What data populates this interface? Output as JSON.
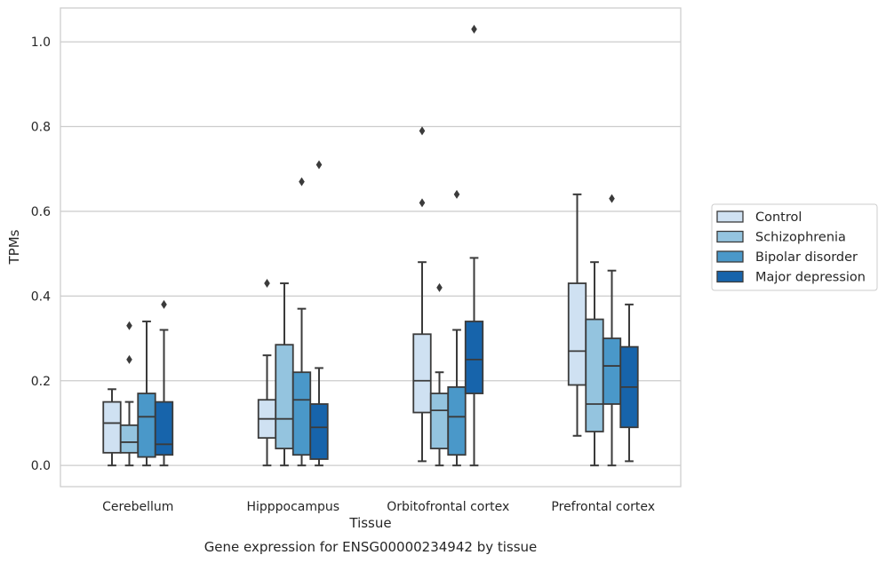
{
  "chart_data": {
    "type": "box",
    "xlabel": "Tissue",
    "ylabel": "TPMs",
    "caption": "Gene expression for ENSG00000234942 by tissue",
    "ylim": [
      -0.05,
      1.08
    ],
    "yticks": [
      "0.0",
      "0.2",
      "0.4",
      "0.6",
      "0.8",
      "1.0"
    ],
    "ytick_values": [
      0,
      0.2,
      0.4,
      0.6,
      0.8,
      1.0
    ],
    "categories": [
      "Cerebellum",
      "Hipppocampus",
      "Orbitofrontal cortex",
      "Prefrontal cortex"
    ],
    "grid": "horizontal",
    "legend_position": "right",
    "series": [
      {
        "name": "Control",
        "color": "#cfe1f2",
        "boxes": [
          {
            "q1": 0.03,
            "median": 0.1,
            "q3": 0.15,
            "whislo": 0.0,
            "whishi": 0.18,
            "fliers": []
          },
          {
            "q1": 0.065,
            "median": 0.11,
            "q3": 0.155,
            "whislo": 0.0,
            "whishi": 0.26,
            "fliers": [
              0.43
            ]
          },
          {
            "q1": 0.125,
            "median": 0.2,
            "q3": 0.31,
            "whislo": 0.01,
            "whishi": 0.48,
            "fliers": [
              0.62,
              0.79
            ]
          },
          {
            "q1": 0.19,
            "median": 0.27,
            "q3": 0.43,
            "whislo": 0.07,
            "whishi": 0.64,
            "fliers": []
          }
        ]
      },
      {
        "name": "Schizophrenia",
        "color": "#94c4df",
        "boxes": [
          {
            "q1": 0.03,
            "median": 0.055,
            "q3": 0.095,
            "whislo": 0.0,
            "whishi": 0.15,
            "fliers": [
              0.25,
              0.33
            ]
          },
          {
            "q1": 0.04,
            "median": 0.11,
            "q3": 0.285,
            "whislo": 0.0,
            "whishi": 0.43,
            "fliers": []
          },
          {
            "q1": 0.04,
            "median": 0.13,
            "q3": 0.17,
            "whislo": 0.0,
            "whishi": 0.22,
            "fliers": [
              0.42
            ]
          },
          {
            "q1": 0.08,
            "median": 0.145,
            "q3": 0.345,
            "whislo": 0.0,
            "whishi": 0.48,
            "fliers": []
          }
        ]
      },
      {
        "name": "Bipolar disorder",
        "color": "#4a98c9",
        "boxes": [
          {
            "q1": 0.02,
            "median": 0.115,
            "q3": 0.17,
            "whislo": 0.0,
            "whishi": 0.34,
            "fliers": []
          },
          {
            "q1": 0.025,
            "median": 0.155,
            "q3": 0.22,
            "whislo": 0.0,
            "whishi": 0.37,
            "fliers": [
              0.67
            ]
          },
          {
            "q1": 0.025,
            "median": 0.115,
            "q3": 0.185,
            "whislo": 0.0,
            "whishi": 0.32,
            "fliers": [
              0.64
            ]
          },
          {
            "q1": 0.145,
            "median": 0.235,
            "q3": 0.3,
            "whislo": 0.0,
            "whishi": 0.46,
            "fliers": [
              0.63
            ]
          }
        ]
      },
      {
        "name": "Major depression",
        "color": "#1764ab",
        "boxes": [
          {
            "q1": 0.025,
            "median": 0.05,
            "q3": 0.15,
            "whislo": 0.0,
            "whishi": 0.32,
            "fliers": [
              0.38
            ]
          },
          {
            "q1": 0.015,
            "median": 0.09,
            "q3": 0.145,
            "whislo": 0.0,
            "whishi": 0.23,
            "fliers": [
              0.71
            ]
          },
          {
            "q1": 0.17,
            "median": 0.25,
            "q3": 0.34,
            "whislo": 0.0,
            "whishi": 0.49,
            "fliers": [
              1.03
            ]
          },
          {
            "q1": 0.09,
            "median": 0.185,
            "q3": 0.28,
            "whislo": 0.01,
            "whishi": 0.38,
            "fliers": []
          }
        ]
      }
    ]
  }
}
